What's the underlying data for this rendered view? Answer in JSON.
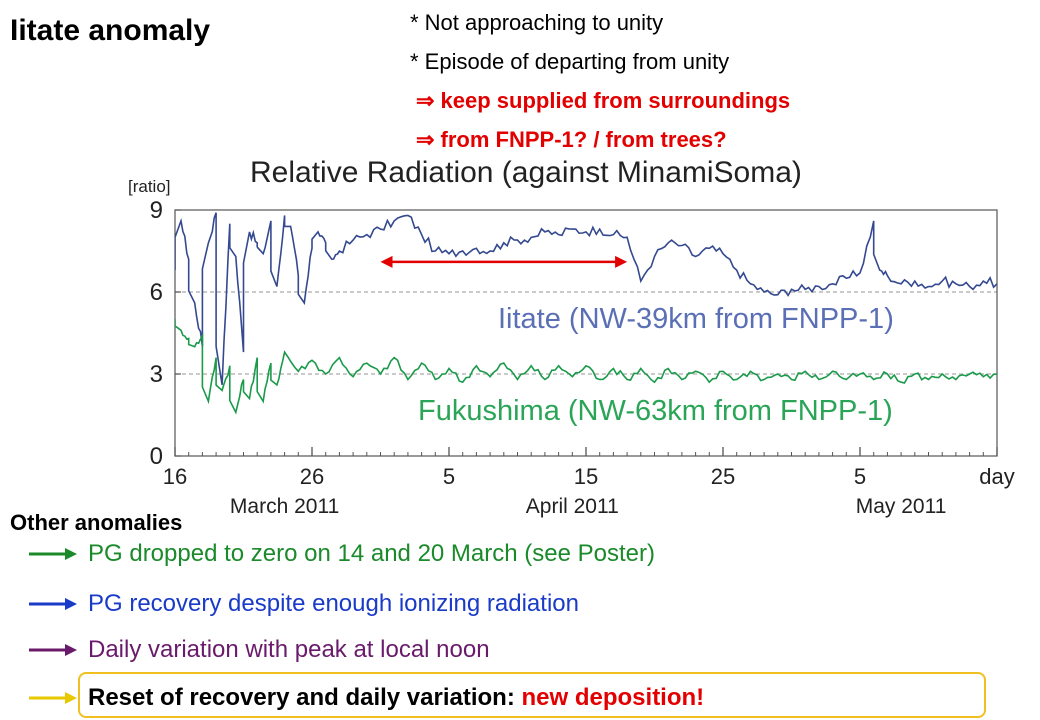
{
  "slide": {
    "title": "Iitate anomaly",
    "notes": [
      {
        "text": "* Not approaching to unity"
      },
      {
        "text": "* Episode of departing from unity"
      },
      {
        "text": "⇒ keep supplied from surroundings"
      },
      {
        "text": "⇒ from FNPP-1? / from trees?"
      }
    ],
    "accent_color": "#e30000"
  },
  "chart_data": {
    "type": "line",
    "title": "Relative Radiation (against MinamiSoma)",
    "ylabel": "[ratio]",
    "xlabel": "day",
    "ylim": [
      0,
      9
    ],
    "yticks": [
      0,
      3,
      6,
      9
    ],
    "xlim": [
      "2011-03-16",
      "2011-05-15"
    ],
    "x_ticks": [
      {
        "label": "16",
        "date": "2011-03-16"
      },
      {
        "label": "26",
        "date": "2011-03-26"
      },
      {
        "label": "5",
        "date": "2011-04-05"
      },
      {
        "label": "15",
        "date": "2011-04-15"
      },
      {
        "label": "25",
        "date": "2011-04-25"
      },
      {
        "label": "5",
        "date": "2011-05-05"
      },
      {
        "label": "day",
        "date": "2011-05-15"
      }
    ],
    "month_labels": [
      {
        "label": "March 2011",
        "date": "2011-03-24"
      },
      {
        "label": "April 2011",
        "date": "2011-04-14"
      },
      {
        "label": "May 2011",
        "date": "2011-05-08"
      }
    ],
    "reference_lines": [
      3,
      6
    ],
    "grid": false,
    "legend": "inline labels",
    "annotation": {
      "type": "double-arrow",
      "from": "2011-03-31",
      "to": "2011-04-18",
      "y": 7.1,
      "color": "#e30000"
    },
    "series": [
      {
        "name": "Iitate (NW-39km from FNPP-1)",
        "color": "#34498f",
        "points": [
          [
            "2011-03-16",
            6.8
          ],
          [
            "2011-03-16",
            8.6
          ],
          [
            "2011-03-17",
            7.2
          ],
          [
            "2011-03-17",
            5.6
          ],
          [
            "2011-03-18",
            4.0
          ],
          [
            "2011-03-18",
            7.8
          ],
          [
            "2011-03-19",
            8.9
          ],
          [
            "2011-03-19",
            2.6
          ],
          [
            "2011-03-20",
            8.5
          ],
          [
            "2011-03-20",
            7.3
          ],
          [
            "2011-03-21",
            3.8
          ],
          [
            "2011-03-21",
            8.2
          ],
          [
            "2011-03-22",
            7.8
          ],
          [
            "2011-03-22",
            7.4
          ],
          [
            "2011-03-23",
            8.6
          ],
          [
            "2011-03-23",
            6.2
          ],
          [
            "2011-03-24",
            8.8
          ],
          [
            "2011-03-24",
            8.4
          ],
          [
            "2011-03-25",
            6.6
          ],
          [
            "2011-03-25",
            5.6
          ],
          [
            "2011-03-26",
            7.6
          ],
          [
            "2011-03-26",
            8.2
          ],
          [
            "2011-03-27",
            7.8
          ],
          [
            "2011-03-27",
            7.2
          ],
          [
            "2011-03-28",
            7.5
          ],
          [
            "2011-03-29",
            7.9
          ],
          [
            "2011-03-30",
            8.1
          ],
          [
            "2011-03-31",
            8.3
          ],
          [
            "2011-04-01",
            8.6
          ],
          [
            "2011-04-02",
            8.8
          ],
          [
            "2011-04-03",
            8.1
          ],
          [
            "2011-04-04",
            7.5
          ],
          [
            "2011-04-05",
            7.4
          ],
          [
            "2011-04-06",
            7.5
          ],
          [
            "2011-04-07",
            7.6
          ],
          [
            "2011-04-08",
            7.5
          ],
          [
            "2011-04-09",
            7.8
          ],
          [
            "2011-04-10",
            7.9
          ],
          [
            "2011-04-11",
            8.0
          ],
          [
            "2011-04-12",
            8.2
          ],
          [
            "2011-04-13",
            8.1
          ],
          [
            "2011-04-14",
            8.3
          ],
          [
            "2011-04-15",
            8.2
          ],
          [
            "2011-04-16",
            8.3
          ],
          [
            "2011-04-17",
            8.1
          ],
          [
            "2011-04-18",
            8.0
          ],
          [
            "2011-04-19",
            6.4
          ],
          [
            "2011-04-20",
            7.3
          ],
          [
            "2011-04-21",
            7.8
          ],
          [
            "2011-04-22",
            7.7
          ],
          [
            "2011-04-23",
            7.3
          ],
          [
            "2011-04-24",
            7.6
          ],
          [
            "2011-04-25",
            7.4
          ],
          [
            "2011-04-26",
            6.8
          ],
          [
            "2011-04-27",
            6.3
          ],
          [
            "2011-04-28",
            6.0
          ],
          [
            "2011-04-29",
            5.9
          ],
          [
            "2011-04-30",
            6.1
          ],
          [
            "2011-05-01",
            6.1
          ],
          [
            "2011-05-02",
            6.2
          ],
          [
            "2011-05-03",
            6.3
          ],
          [
            "2011-05-04",
            6.5
          ],
          [
            "2011-05-05",
            6.7
          ],
          [
            "2011-05-06",
            8.6
          ],
          [
            "2011-05-06",
            6.8
          ],
          [
            "2011-05-07",
            6.6
          ],
          [
            "2011-05-08",
            6.3
          ],
          [
            "2011-05-09",
            6.4
          ],
          [
            "2011-05-10",
            6.2
          ],
          [
            "2011-05-11",
            6.4
          ],
          [
            "2011-05-12",
            6.3
          ],
          [
            "2011-05-13",
            6.2
          ],
          [
            "2011-05-14",
            6.4
          ],
          [
            "2011-05-15",
            6.3
          ]
        ]
      },
      {
        "name": "Fukushima (NW-63km from FNPP-1)",
        "color": "#1a9a4a",
        "points": [
          [
            "2011-03-16",
            5.0
          ],
          [
            "2011-03-16",
            4.6
          ],
          [
            "2011-03-17",
            4.3
          ],
          [
            "2011-03-17",
            4.0
          ],
          [
            "2011-03-18",
            4.4
          ],
          [
            "2011-03-18",
            2.0
          ],
          [
            "2011-03-19",
            3.6
          ],
          [
            "2011-03-19",
            2.4
          ],
          [
            "2011-03-20",
            3.3
          ],
          [
            "2011-03-20",
            1.6
          ],
          [
            "2011-03-21",
            2.8
          ],
          [
            "2011-03-21",
            2.1
          ],
          [
            "2011-03-22",
            3.6
          ],
          [
            "2011-03-22",
            2.0
          ],
          [
            "2011-03-23",
            3.4
          ],
          [
            "2011-03-23",
            2.6
          ],
          [
            "2011-03-24",
            3.8
          ],
          [
            "2011-03-25",
            3.1
          ],
          [
            "2011-03-26",
            3.5
          ],
          [
            "2011-03-27",
            3.0
          ],
          [
            "2011-03-28",
            3.6
          ],
          [
            "2011-03-29",
            2.9
          ],
          [
            "2011-03-30",
            3.4
          ],
          [
            "2011-03-31",
            3.0
          ],
          [
            "2011-04-01",
            3.6
          ],
          [
            "2011-04-02",
            2.8
          ],
          [
            "2011-04-03",
            3.4
          ],
          [
            "2011-04-04",
            2.8
          ],
          [
            "2011-04-05",
            3.2
          ],
          [
            "2011-04-06",
            2.7
          ],
          [
            "2011-04-07",
            3.3
          ],
          [
            "2011-04-08",
            2.9
          ],
          [
            "2011-04-09",
            3.4
          ],
          [
            "2011-04-10",
            2.8
          ],
          [
            "2011-04-11",
            3.3
          ],
          [
            "2011-04-12",
            2.8
          ],
          [
            "2011-04-13",
            3.3
          ],
          [
            "2011-04-14",
            2.9
          ],
          [
            "2011-04-15",
            3.3
          ],
          [
            "2011-04-16",
            2.8
          ],
          [
            "2011-04-17",
            3.2
          ],
          [
            "2011-04-18",
            2.8
          ],
          [
            "2011-04-19",
            3.2
          ],
          [
            "2011-04-20",
            2.7
          ],
          [
            "2011-04-21",
            3.2
          ],
          [
            "2011-04-22",
            2.8
          ],
          [
            "2011-04-23",
            3.1
          ],
          [
            "2011-04-24",
            2.7
          ],
          [
            "2011-04-25",
            3.1
          ],
          [
            "2011-04-26",
            2.8
          ],
          [
            "2011-04-27",
            3.1
          ],
          [
            "2011-04-28",
            2.8
          ],
          [
            "2011-04-29",
            3.0
          ],
          [
            "2011-04-30",
            2.8
          ],
          [
            "2011-05-01",
            3.1
          ],
          [
            "2011-05-02",
            2.8
          ],
          [
            "2011-05-03",
            3.1
          ],
          [
            "2011-05-04",
            2.8
          ],
          [
            "2011-05-05",
            3.0
          ],
          [
            "2011-05-06",
            2.8
          ],
          [
            "2011-05-07",
            3.0
          ],
          [
            "2011-05-08",
            2.7
          ],
          [
            "2011-05-09",
            3.0
          ],
          [
            "2011-05-10",
            2.8
          ],
          [
            "2011-05-11",
            3.0
          ],
          [
            "2011-05-12",
            2.8
          ],
          [
            "2011-05-13",
            3.0
          ],
          [
            "2011-05-14",
            2.9
          ],
          [
            "2011-05-15",
            3.0
          ]
        ]
      }
    ]
  },
  "other_anomalies": {
    "title": "Other anomalies",
    "items": [
      {
        "text": "PG dropped to zero on 14 and 20 March (see Poster)",
        "color": "#1a8a2a",
        "arrow_color": "#1a8a2a"
      },
      {
        "text": "PG recovery despite enough ionizing radiation",
        "color": "#1a3ac8",
        "arrow_color": "#1a3ac8"
      },
      {
        "text": "Daily variation with peak at local noon",
        "color": "#6a1a6a",
        "arrow_color": "#6a1a6a"
      },
      {
        "text_main": "Reset of recovery and daily variation: ",
        "text_emphasis": "new deposition!",
        "color": "#000000",
        "emphasis_color": "#e30000",
        "arrow_color": "#e8c800",
        "box_color": "#f0c020"
      }
    ]
  }
}
